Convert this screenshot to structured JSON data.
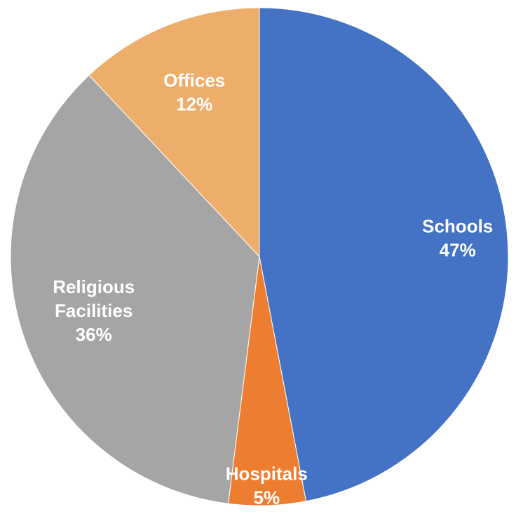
{
  "chart_data": {
    "type": "pie",
    "title": "",
    "categories": [
      "Schools",
      "Hospitals",
      "Religious Facilities",
      "Offices"
    ],
    "values": [
      47,
      5,
      36,
      12
    ],
    "data_labels": [
      {
        "lines": [
          "Schools",
          "47%"
        ]
      },
      {
        "lines": [
          "Hospitals",
          "5%"
        ]
      },
      {
        "lines": [
          "Religious",
          "Facilities",
          "36%"
        ]
      },
      {
        "lines": [
          "Offices",
          "12%"
        ]
      }
    ],
    "colors": [
      "#4472C4",
      "#ED7D31",
      "#A5A5A5",
      "#EDAD6B"
    ],
    "label_color": "#FFFFFF",
    "start_angle": "12 o'clock",
    "direction": "clockwise",
    "legend": "none"
  }
}
